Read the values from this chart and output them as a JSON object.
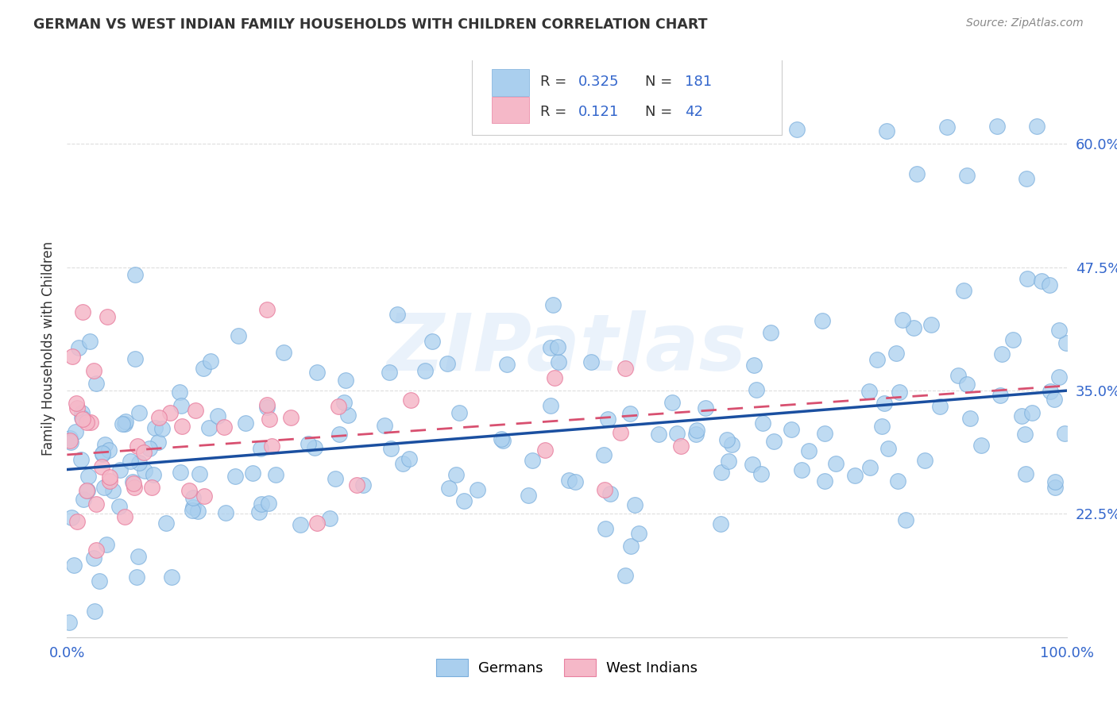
{
  "title": "GERMAN VS WEST INDIAN FAMILY HOUSEHOLDS WITH CHILDREN CORRELATION CHART",
  "source": "Source: ZipAtlas.com",
  "ylabel": "Family Households with Children",
  "xlim": [
    0.0,
    1.0
  ],
  "ylim": [
    0.1,
    0.685
  ],
  "yticks": [
    0.225,
    0.35,
    0.475,
    0.6
  ],
  "ytick_labels": [
    "22.5%",
    "35.0%",
    "47.5%",
    "60.0%"
  ],
  "german_color": "#aacfee",
  "german_edge": "#7aaedc",
  "west_indian_color": "#f5b8c8",
  "west_indian_edge": "#e880a0",
  "trend_german_color": "#1a4fa0",
  "trend_wi_color": "#d85070",
  "watermark": "ZIPatlas",
  "background_color": "#ffffff",
  "grid_color": "#dddddd",
  "text_color": "#333333",
  "accent_color": "#3366cc",
  "source_color": "#888888",
  "trend_german_y0": 0.27,
  "trend_german_y1": 0.35,
  "trend_wi_y0": 0.285,
  "trend_wi_y1": 0.355
}
